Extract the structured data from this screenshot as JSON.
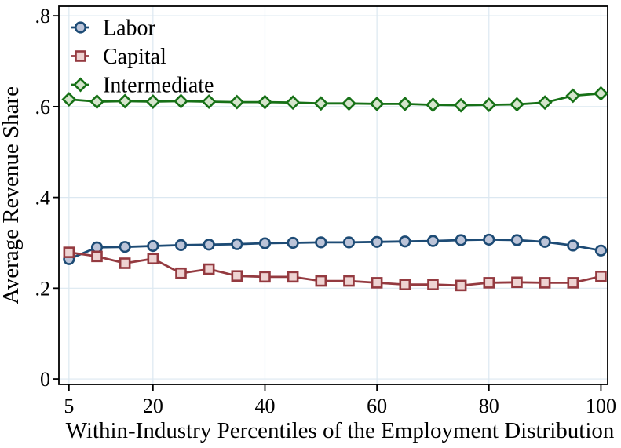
{
  "figure": {
    "background": "#ffffff",
    "axis_color": "#000000",
    "grid_color": "#dce8f1"
  },
  "chart_data": {
    "type": "line",
    "title": "",
    "xlabel": "Within-Industry Percentiles of the Employment Distribution",
    "ylabel": "Average Revenue Share",
    "x": [
      5,
      10,
      15,
      20,
      25,
      30,
      35,
      40,
      45,
      50,
      55,
      60,
      65,
      70,
      75,
      80,
      85,
      90,
      95,
      100
    ],
    "series": [
      {
        "name": "Labor",
        "marker": "circle",
        "line_color": "#1d4b75",
        "marker_fill": "#bcc4d8",
        "values": [
          0.264,
          0.29,
          0.291,
          0.293,
          0.295,
          0.296,
          0.297,
          0.299,
          0.3,
          0.301,
          0.301,
          0.302,
          0.303,
          0.304,
          0.306,
          0.307,
          0.306,
          0.302,
          0.294,
          0.283
        ]
      },
      {
        "name": "Capital",
        "marker": "square",
        "line_color": "#943a40",
        "marker_fill": "#eed3d2",
        "values": [
          0.279,
          0.27,
          0.255,
          0.265,
          0.233,
          0.242,
          0.227,
          0.225,
          0.225,
          0.216,
          0.216,
          0.212,
          0.208,
          0.208,
          0.206,
          0.212,
          0.213,
          0.212,
          0.212,
          0.226
        ]
      },
      {
        "name": "Intermediate",
        "marker": "diamond",
        "line_color": "#177117",
        "marker_fill": "#d5e5cc",
        "values": [
          0.616,
          0.611,
          0.612,
          0.611,
          0.612,
          0.611,
          0.61,
          0.61,
          0.609,
          0.607,
          0.607,
          0.606,
          0.606,
          0.604,
          0.603,
          0.604,
          0.605,
          0.609,
          0.624,
          0.629
        ]
      }
    ],
    "x_tick_values": [
      5,
      20,
      40,
      60,
      80,
      100
    ],
    "x_tick_labels": [
      "5",
      "20",
      "40",
      "60",
      "80",
      "100"
    ],
    "y_tick_values": [
      0,
      0.2,
      0.4,
      0.6,
      0.8
    ],
    "y_tick_labels": [
      "0",
      ".2",
      ".4",
      ".6",
      ".8"
    ],
    "xlim": [
      3.2,
      101.2
    ],
    "ylim": [
      -0.012,
      0.821
    ],
    "grid": true,
    "legend_position": "top-left"
  }
}
